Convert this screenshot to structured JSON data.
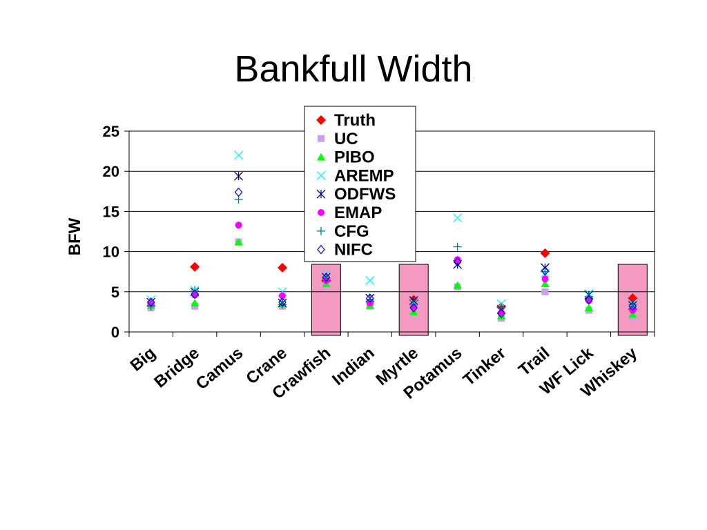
{
  "chart_data": {
    "type": "scatter",
    "title": "Bankfull Width",
    "ylabel": "BFW",
    "xlabel": "",
    "ylim": [
      0,
      25
    ],
    "yticks": [
      "0",
      "5",
      "10",
      "15",
      "20",
      "25"
    ],
    "categories": [
      "Big",
      "Bridge",
      "Camus",
      "Crane",
      "Crawfish",
      "Indian",
      "Myrtle",
      "Potamus",
      "Tinker",
      "Trail",
      "WF Lick",
      "Whiskey"
    ],
    "highlighted_categories": [
      "Crawfish",
      "Myrtle",
      "Whiskey"
    ],
    "highlight_color": "#f49ac1",
    "grid": true,
    "legend_position": "top-center",
    "series": [
      {
        "name": "Truth",
        "marker": "diamond-filled",
        "color": "#ff0000",
        "values": [
          null,
          8.1,
          null,
          8.0,
          6.4,
          null,
          4.0,
          null,
          3.1,
          9.8,
          null,
          4.2
        ]
      },
      {
        "name": "UC",
        "marker": "square",
        "color": "#c9a0f0",
        "values": [
          3.0,
          3.2,
          11.2,
          3.2,
          5.8,
          3.2,
          3.3,
          5.6,
          1.7,
          5.0,
          2.7,
          1.8
        ]
      },
      {
        "name": "PIBO",
        "marker": "triangle",
        "color": "#00ff00",
        "values": [
          3.3,
          3.6,
          11.2,
          3.5,
          6.0,
          3.3,
          2.5,
          5.8,
          2.0,
          6.0,
          3.0,
          2.2
        ]
      },
      {
        "name": "AREMP",
        "marker": "x",
        "color": "#00ffff",
        "values": [
          4.0,
          5.2,
          22.0,
          5.0,
          7.2,
          6.4,
          3.6,
          14.2,
          3.5,
          7.3,
          4.8,
          3.5
        ]
      },
      {
        "name": "ODFWS",
        "marker": "asterisk",
        "color": "#000080",
        "values": [
          3.7,
          5.0,
          19.4,
          3.6,
          6.8,
          4.2,
          3.9,
          8.4,
          2.8,
          8.0,
          4.6,
          3.3
        ]
      },
      {
        "name": "EMAP",
        "marker": "circle",
        "color": "#ff00ff",
        "values": [
          3.5,
          4.6,
          13.3,
          4.5,
          6.4,
          3.6,
          3.1,
          9.0,
          2.4,
          6.6,
          3.9,
          2.7
        ]
      },
      {
        "name": "CFG",
        "marker": "plus",
        "color": "#008080",
        "values": [
          3.2,
          5.2,
          16.5,
          3.4,
          6.7,
          4.0,
          3.5,
          10.6,
          3.0,
          7.5,
          4.4,
          3.4
        ]
      },
      {
        "name": "NIFC",
        "marker": "diamond-open",
        "color": "#0000cc",
        "values": [
          3.7,
          4.7,
          17.4,
          3.7,
          6.8,
          4.2,
          3.0,
          8.7,
          2.3,
          7.6,
          4.0,
          3.2
        ]
      }
    ]
  }
}
